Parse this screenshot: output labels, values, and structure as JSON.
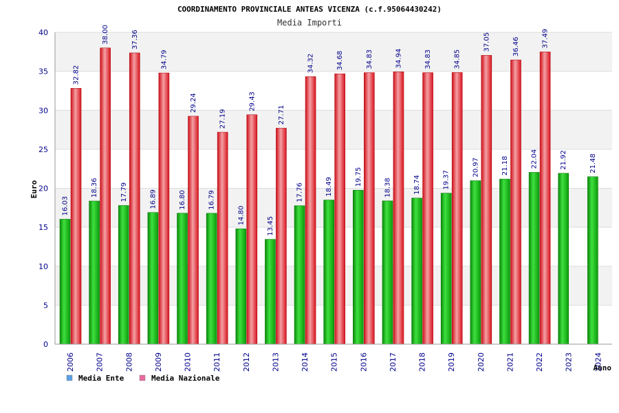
{
  "chart_data": {
    "type": "bar",
    "title": "COORDINAMENTO PROVINCIALE ANTEAS VICENZA (c.f.95064430242)",
    "subtitle": "Media Importi",
    "xlabel": "Anno",
    "ylabel": "Euro",
    "ylim": [
      0,
      40
    ],
    "yticks": [
      0,
      5,
      10,
      15,
      20,
      25,
      30,
      35,
      40
    ],
    "grid": true,
    "legend_position": "bottom-left",
    "categories": [
      "2006",
      "2007",
      "2008",
      "2009",
      "2010",
      "2011",
      "2012",
      "2013",
      "2014",
      "2015",
      "2016",
      "2017",
      "2018",
      "2019",
      "2020",
      "2021",
      "2022",
      "2023",
      "2024"
    ],
    "series": [
      {
        "name": "Media Ente",
        "color": "#18b418",
        "legend_color": "#5aa0e6",
        "values": [
          16.03,
          18.36,
          17.79,
          16.89,
          16.8,
          16.79,
          14.8,
          13.45,
          17.76,
          18.49,
          19.75,
          18.38,
          18.74,
          19.37,
          20.97,
          21.18,
          22.04,
          21.92,
          21.48
        ]
      },
      {
        "name": "Media Nazionale",
        "color": "#e8202a",
        "legend_color": "#e86aa0",
        "values": [
          32.82,
          38.0,
          37.36,
          34.79,
          29.24,
          27.19,
          29.43,
          27.71,
          34.32,
          34.68,
          34.83,
          34.94,
          34.83,
          34.85,
          37.05,
          36.46,
          37.49,
          null,
          null
        ]
      }
    ]
  }
}
